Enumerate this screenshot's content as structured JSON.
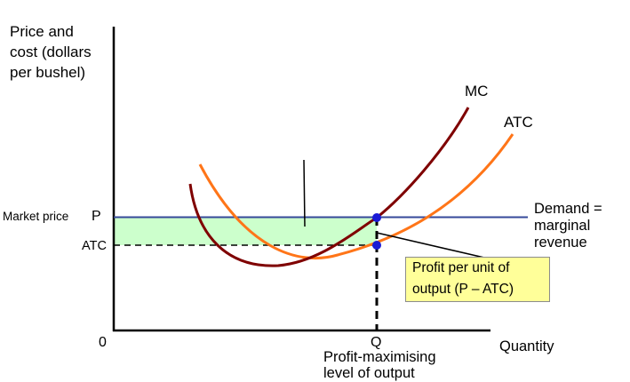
{
  "y_axis_label_lines": [
    "Price and",
    "cost (dollars",
    "per bushel)"
  ],
  "x_axis_label": "Quantity",
  "origin_label": "0",
  "market_price_label": "Market price",
  "p_label": "P",
  "atc_level_label": "ATC",
  "q_label": "Q",
  "q_caption_lines": [
    "Profit-maximising",
    "level of output"
  ],
  "mc_label": "MC",
  "atc_curve_label": "ATC",
  "demand_label_lines": [
    "Demand =",
    "marginal",
    "revenue"
  ],
  "callout_lines": [
    "Profit per unit of",
    "output (P – ATC)"
  ],
  "colors": {
    "mc": "#7f0000",
    "atc": "#ff7518",
    "demand": "#36489a",
    "profit_area": "#ccffcc",
    "callout_bg": "#ffff99",
    "point": "#1a1ad6"
  }
}
